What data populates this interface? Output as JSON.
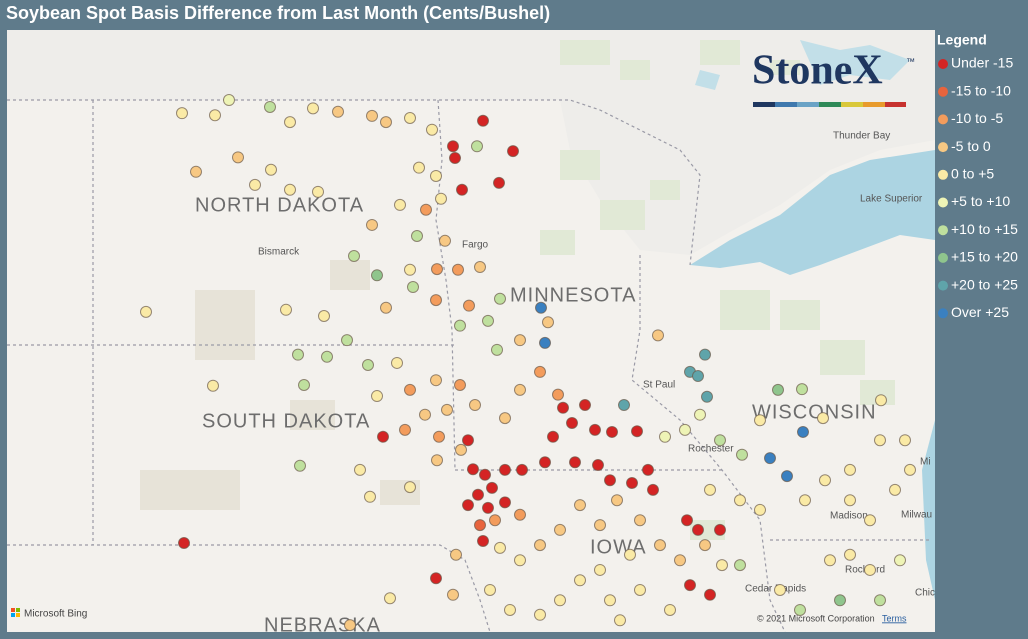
{
  "header": {
    "title": "Soybean Spot Basis Difference from Last Month (Cents/Bushel)"
  },
  "logo": {
    "name": "StoneX",
    "mark": "™"
  },
  "legend": {
    "title": "Legend",
    "items": [
      {
        "label": "Under -15",
        "color": "#d42424"
      },
      {
        "label": "-15 to -10",
        "color": "#e8643d"
      },
      {
        "label": "-10 to -5",
        "color": "#f39c5c"
      },
      {
        "label": "-5 to 0",
        "color": "#f7c883"
      },
      {
        "label": "0 to +5",
        "color": "#faeaa6"
      },
      {
        "label": "+5 to +10",
        "color": "#eef4b6"
      },
      {
        "label": "+10 to +15",
        "color": "#bfe09e"
      },
      {
        "label": "+15 to +20",
        "color": "#8fc58d"
      },
      {
        "label": "+20 to +25",
        "color": "#5fa4aa"
      },
      {
        "label": "Over +25",
        "color": "#3a80c0"
      }
    ]
  },
  "map": {
    "states": [
      "NORTH DAKOTA",
      "SOUTH DAKOTA",
      "MINNESOTA",
      "WISCONSIN",
      "IOWA",
      "NEBRASKA"
    ],
    "places": [
      "Bismarck",
      "Fargo",
      "St Paul",
      "Rochester",
      "Madison",
      "Milwau",
      "Cedar Rapids",
      "Rockford",
      "Chic",
      "Thunder Bay",
      "Lake Superior",
      "Mi"
    ],
    "attribution": {
      "brand": "Microsoft Bing",
      "copyright": "© 2021 Microsoft Corporation",
      "terms": "Terms"
    },
    "points": [
      [
        -101.34,
        49.16,
        5
      ],
      [
        -102.28,
        48.97,
        4
      ],
      [
        -101.62,
        48.94,
        4
      ],
      [
        -100.52,
        49.06,
        6
      ],
      [
        -100.12,
        48.84,
        4
      ],
      [
        -99.66,
        49.04,
        4
      ],
      [
        -99.16,
        48.99,
        3
      ],
      [
        -98.48,
        48.93,
        3
      ],
      [
        -98.2,
        48.84,
        3
      ],
      [
        -97.72,
        48.9,
        4
      ],
      [
        -97.28,
        48.73,
        4
      ],
      [
        -96.26,
        48.86,
        0
      ],
      [
        -96.86,
        48.49,
        0
      ],
      [
        -96.82,
        48.32,
        0
      ],
      [
        -96.38,
        48.49,
        6
      ],
      [
        -95.66,
        48.42,
        0
      ],
      [
        -95.94,
        47.96,
        0
      ],
      [
        -96.68,
        47.86,
        0
      ],
      [
        -97.2,
        48.06,
        4
      ],
      [
        -97.54,
        48.18,
        4
      ],
      [
        -100.5,
        48.15,
        4
      ],
      [
        -101.16,
        48.33,
        3
      ],
      [
        -102.0,
        48.12,
        3
      ],
      [
        -100.82,
        47.93,
        4
      ],
      [
        -100.12,
        47.86,
        4
      ],
      [
        -99.56,
        47.83,
        4
      ],
      [
        -97.92,
        47.64,
        4
      ],
      [
        -97.4,
        47.57,
        2
      ],
      [
        -97.1,
        47.73,
        4
      ],
      [
        -98.48,
        47.35,
        3
      ],
      [
        -97.58,
        47.19,
        6
      ],
      [
        -97.02,
        47.12,
        3
      ],
      [
        -98.84,
        46.9,
        6
      ],
      [
        -97.72,
        46.7,
        4
      ],
      [
        -98.38,
        46.62,
        7
      ],
      [
        -97.18,
        46.71,
        2
      ],
      [
        -96.76,
        46.7,
        2
      ],
      [
        -96.32,
        46.74,
        3
      ],
      [
        -97.66,
        46.45,
        6
      ],
      [
        -97.2,
        46.26,
        2
      ],
      [
        -98.2,
        46.15,
        3
      ],
      [
        -99.44,
        46.03,
        4
      ],
      [
        -100.2,
        46.12,
        4
      ],
      [
        -103.0,
        46.09,
        4
      ],
      [
        -96.54,
        46.18,
        2
      ],
      [
        -96.72,
        45.89,
        6
      ],
      [
        -96.16,
        45.96,
        6
      ],
      [
        -95.1,
        46.15,
        9
      ],
      [
        -95.02,
        45.64,
        9
      ],
      [
        -95.52,
        45.68,
        3
      ],
      [
        -95.98,
        45.54,
        6
      ],
      [
        -95.92,
        46.28,
        6
      ],
      [
        -94.96,
        45.94,
        3
      ],
      [
        -92.76,
        45.75,
        3
      ],
      [
        -99.96,
        45.47,
        6
      ],
      [
        -99.38,
        45.44,
        6
      ],
      [
        -98.98,
        45.68,
        6
      ],
      [
        -98.56,
        45.32,
        6
      ],
      [
        -99.84,
        45.03,
        6
      ],
      [
        -101.66,
        45.02,
        4
      ],
      [
        -98.38,
        44.87,
        4
      ],
      [
        -97.98,
        45.35,
        4
      ],
      [
        -97.72,
        44.96,
        2
      ],
      [
        -97.2,
        45.1,
        3
      ],
      [
        -96.72,
        45.03,
        2
      ],
      [
        -96.42,
        44.74,
        3
      ],
      [
        -96.98,
        44.67,
        3
      ],
      [
        -97.42,
        44.6,
        3
      ],
      [
        -97.82,
        44.38,
        2
      ],
      [
        -98.26,
        44.28,
        0
      ],
      [
        -97.14,
        44.28,
        2
      ],
      [
        -96.56,
        44.23,
        0
      ],
      [
        -95.82,
        44.55,
        3
      ],
      [
        -95.52,
        44.96,
        3
      ],
      [
        -95.12,
        45.22,
        2
      ],
      [
        -94.76,
        44.89,
        2
      ],
      [
        -94.66,
        44.7,
        0
      ],
      [
        -94.22,
        44.74,
        0
      ],
      [
        -94.86,
        44.28,
        0
      ],
      [
        -94.48,
        44.48,
        0
      ],
      [
        -94.02,
        44.38,
        0
      ],
      [
        -93.68,
        44.35,
        0
      ],
      [
        -93.18,
        44.36,
        0
      ],
      [
        -93.44,
        44.74,
        8
      ],
      [
        -99.92,
        43.86,
        6
      ],
      [
        -98.72,
        43.8,
        4
      ],
      [
        -98.52,
        43.41,
        4
      ],
      [
        -97.72,
        43.55,
        4
      ],
      [
        -97.18,
        43.94,
        3
      ],
      [
        -96.7,
        44.09,
        3
      ],
      [
        -96.46,
        43.81,
        0
      ],
      [
        -96.22,
        43.73,
        0
      ],
      [
        -96.08,
        43.54,
        0
      ],
      [
        -96.36,
        43.44,
        0
      ],
      [
        -96.56,
        43.29,
        0
      ],
      [
        -96.16,
        43.25,
        0
      ],
      [
        -95.82,
        43.33,
        0
      ],
      [
        -95.52,
        43.15,
        2
      ],
      [
        -96.02,
        43.07,
        2
      ],
      [
        -96.32,
        43.0,
        1
      ],
      [
        -95.82,
        43.8,
        0
      ],
      [
        -95.48,
        43.8,
        0
      ],
      [
        -95.02,
        43.91,
        0
      ],
      [
        -94.42,
        43.91,
        0
      ],
      [
        -93.96,
        43.87,
        0
      ],
      [
        -93.72,
        43.65,
        0
      ],
      [
        -93.28,
        43.61,
        0
      ],
      [
        -92.96,
        43.8,
        0
      ],
      [
        -92.86,
        43.51,
        0
      ],
      [
        -93.58,
        43.36,
        3
      ],
      [
        -93.12,
        43.07,
        3
      ],
      [
        -94.32,
        43.29,
        3
      ],
      [
        -93.92,
        43.0,
        3
      ],
      [
        -94.72,
        42.93,
        3
      ],
      [
        -95.12,
        42.71,
        3
      ],
      [
        -95.52,
        42.49,
        4
      ],
      [
        -95.92,
        42.67,
        4
      ],
      [
        -96.26,
        42.77,
        0
      ],
      [
        -96.8,
        42.57,
        3
      ],
      [
        -97.2,
        42.23,
        0
      ],
      [
        -96.86,
        41.99,
        3
      ],
      [
        -96.12,
        42.06,
        4
      ],
      [
        -98.12,
        41.94,
        4
      ],
      [
        -102.24,
        42.74,
        0
      ],
      [
        -98.92,
        41.55,
        3
      ],
      [
        -92.18,
        43.07,
        0
      ],
      [
        -91.96,
        42.93,
        0
      ],
      [
        -91.52,
        42.93,
        0
      ],
      [
        -92.12,
        42.13,
        0
      ],
      [
        -91.72,
        41.99,
        0
      ],
      [
        -92.32,
        42.49,
        3
      ],
      [
        -91.82,
        42.71,
        3
      ],
      [
        -91.48,
        42.42,
        4
      ],
      [
        -91.12,
        42.42,
        6
      ],
      [
        -92.72,
        42.71,
        3
      ],
      [
        -93.32,
        42.57,
        4
      ],
      [
        -93.92,
        42.35,
        4
      ],
      [
        -94.32,
        42.2,
        4
      ],
      [
        -94.72,
        41.91,
        4
      ],
      [
        -93.72,
        41.91,
        4
      ],
      [
        -93.12,
        42.06,
        4
      ],
      [
        -92.52,
        41.77,
        4
      ],
      [
        -93.52,
        41.62,
        4
      ],
      [
        -95.12,
        41.7,
        4
      ],
      [
        -95.72,
        41.77,
        4
      ],
      [
        -92.12,
        45.22,
        8
      ],
      [
        -91.82,
        45.47,
        8
      ],
      [
        -91.96,
        45.16,
        8
      ],
      [
        -91.78,
        44.86,
        8
      ],
      [
        -92.62,
        44.28,
        5
      ],
      [
        -92.22,
        44.38,
        5
      ],
      [
        -91.92,
        44.6,
        5
      ],
      [
        -91.52,
        44.23,
        6
      ],
      [
        -91.08,
        44.02,
        6
      ],
      [
        -90.52,
        43.97,
        9
      ],
      [
        -90.18,
        43.71,
        9
      ],
      [
        -89.86,
        44.35,
        9
      ],
      [
        -90.36,
        44.96,
        7
      ],
      [
        -89.88,
        44.97,
        6
      ],
      [
        -89.46,
        44.55,
        4
      ],
      [
        -88.3,
        44.81,
        4
      ],
      [
        -88.32,
        44.23,
        4
      ],
      [
        -87.82,
        44.23,
        4
      ],
      [
        -87.72,
        43.8,
        4
      ],
      [
        -88.92,
        43.8,
        4
      ],
      [
        -89.42,
        43.65,
        4
      ],
      [
        -89.82,
        43.36,
        4
      ],
      [
        -88.92,
        43.36,
        4
      ],
      [
        -88.52,
        43.07,
        4
      ],
      [
        -88.02,
        43.51,
        4
      ],
      [
        -90.72,
        43.22,
        4
      ],
      [
        -91.12,
        43.36,
        4
      ],
      [
        -91.72,
        43.51,
        4
      ],
      [
        -89.32,
        42.49,
        4
      ],
      [
        -88.92,
        42.57,
        4
      ],
      [
        -88.52,
        42.35,
        4
      ],
      [
        -87.92,
        42.49,
        5
      ],
      [
        -88.32,
        41.91,
        6
      ],
      [
        -89.92,
        41.77,
        6
      ],
      [
        -89.12,
        41.91,
        7
      ],
      [
        -90.32,
        42.06,
        4
      ],
      [
        -90.72,
        44.52,
        4
      ]
    ]
  }
}
